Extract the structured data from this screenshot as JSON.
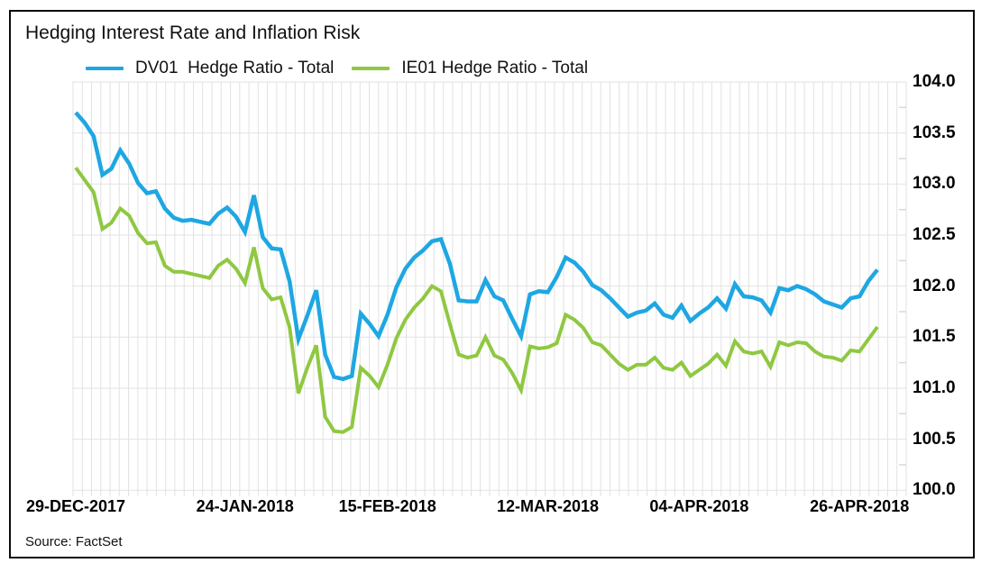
{
  "chart_data": {
    "type": "line",
    "title": "Hedging Interest Rate and Inflation Risk",
    "source_note": "Source: FactSet",
    "xlabel": "",
    "ylabel": "",
    "ylim": [
      100.0,
      104.0
    ],
    "y_tick_step": 0.5,
    "grid": "light-gray daily vertical lines and horizontal lines every 0.5",
    "legend_position": "top-left, horizontal",
    "y_tick_labels": [
      "104.0",
      "103.5",
      "103.0",
      "102.5",
      "102.0",
      "101.5",
      "101.0",
      "100.5",
      "100.0"
    ],
    "x_tick_labels": [
      "29-DEC-2017",
      "24-JAN-2018",
      "15-FEB-2018",
      "12-MAR-2018",
      "04-APR-2018",
      "26-APR-2018"
    ],
    "x_tick_indices": [
      0,
      19,
      35,
      53,
      70,
      88
    ],
    "x_unit": "daily observations (business days)",
    "legend": [
      {
        "label": "DV01  Hedge Ratio - Total",
        "color": "#1EA7E2"
      },
      {
        "label": "IE01 Hedge Ratio - Total",
        "color": "#8FC841"
      }
    ],
    "series": [
      {
        "name": "DV01 Hedge Ratio - Total",
        "color": "#1EA7E2",
        "values": [
          103.7,
          103.6,
          103.47,
          103.09,
          103.15,
          103.33,
          103.2,
          103.01,
          102.91,
          102.93,
          102.76,
          102.67,
          102.64,
          102.65,
          102.63,
          102.61,
          102.71,
          102.77,
          102.68,
          102.53,
          102.89,
          102.48,
          102.37,
          102.36,
          102.05,
          101.48,
          101.71,
          101.96,
          101.33,
          101.11,
          101.09,
          101.12,
          101.73,
          101.63,
          101.51,
          101.72,
          101.99,
          102.17,
          102.28,
          102.35,
          102.44,
          102.46,
          102.22,
          101.86,
          101.85,
          101.85,
          102.06,
          101.9,
          101.86,
          101.68,
          101.51,
          101.92,
          101.95,
          101.94,
          102.09,
          102.28,
          102.23,
          102.14,
          102.01,
          101.96,
          101.88,
          101.79,
          101.7,
          101.74,
          101.76,
          101.83,
          101.72,
          101.69,
          101.81,
          101.66,
          101.73,
          101.79,
          101.88,
          101.78,
          102.02,
          101.9,
          101.89,
          101.86,
          101.74,
          101.98,
          101.96,
          102.0,
          101.97,
          101.92,
          101.85,
          101.82,
          101.79,
          101.88,
          101.9,
          102.05,
          102.16
        ]
      },
      {
        "name": "IE01 Hedge Ratio - Total",
        "color": "#8FC841",
        "values": [
          103.16,
          103.04,
          102.92,
          102.56,
          102.62,
          102.76,
          102.69,
          102.52,
          102.42,
          102.43,
          102.2,
          102.14,
          102.14,
          102.12,
          102.1,
          102.08,
          102.2,
          102.26,
          102.17,
          102.03,
          102.38,
          101.98,
          101.87,
          101.89,
          101.6,
          100.95,
          101.2,
          101.42,
          100.72,
          100.58,
          100.57,
          100.62,
          101.2,
          101.12,
          101.01,
          101.23,
          101.49,
          101.67,
          101.79,
          101.88,
          102.0,
          101.95,
          101.63,
          101.33,
          101.3,
          101.32,
          101.5,
          101.32,
          101.28,
          101.15,
          100.98,
          101.41,
          101.39,
          101.4,
          101.44,
          101.72,
          101.67,
          101.59,
          101.45,
          101.42,
          101.33,
          101.24,
          101.18,
          101.23,
          101.23,
          101.3,
          101.2,
          101.18,
          101.25,
          101.12,
          101.18,
          101.24,
          101.33,
          101.22,
          101.46,
          101.36,
          101.34,
          101.36,
          101.21,
          101.45,
          101.42,
          101.45,
          101.44,
          101.36,
          101.31,
          101.3,
          101.27,
          101.37,
          101.36,
          101.48,
          101.6
        ]
      }
    ]
  }
}
